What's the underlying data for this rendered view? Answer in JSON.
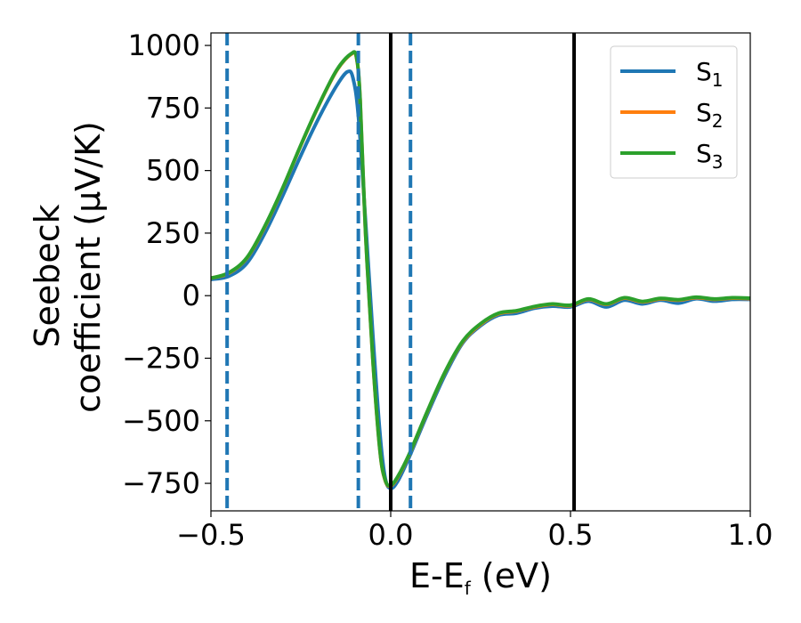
{
  "chart_data": {
    "type": "line",
    "xlabel": {
      "main": "E-E",
      "sub": "f",
      "tail": " (eV)"
    },
    "ylabel": {
      "line1": "Seebeck",
      "line2": "coefficient  (μV/K)"
    },
    "xlim": [
      -0.5,
      1.0
    ],
    "ylim": [
      -860,
      1050
    ],
    "xticks": [
      -0.5,
      0.0,
      0.5,
      1.0
    ],
    "xtick_labels": [
      "−0.5",
      "0.0",
      "0.5",
      "1.0"
    ],
    "yticks": [
      1000,
      750,
      500,
      250,
      0,
      -250,
      -500,
      -750
    ],
    "ytick_labels": [
      "1000",
      "750",
      "500",
      "250",
      "0",
      "−250",
      "−500",
      "−750"
    ],
    "grid": false,
    "legend_position": "top-right",
    "vlines_dashed": [
      -0.455,
      -0.09,
      0.055
    ],
    "vlines_solid": [
      0.0,
      0.51
    ],
    "vline_dashed_color": "#1f77b4",
    "vline_solid_color": "#000000",
    "series": [
      {
        "name": "S",
        "sub": "1",
        "color": "#1f77b4",
        "points": [
          [
            -0.5,
            65
          ],
          [
            -0.45,
            78
          ],
          [
            -0.4,
            130
          ],
          [
            -0.35,
            250
          ],
          [
            -0.3,
            400
          ],
          [
            -0.25,
            560
          ],
          [
            -0.2,
            710
          ],
          [
            -0.15,
            840
          ],
          [
            -0.12,
            895
          ],
          [
            -0.105,
            870
          ],
          [
            -0.09,
            720
          ],
          [
            -0.07,
            300
          ],
          [
            -0.05,
            -150
          ],
          [
            -0.03,
            -550
          ],
          [
            -0.015,
            -730
          ],
          [
            0.0,
            -770
          ],
          [
            0.02,
            -740
          ],
          [
            0.05,
            -650
          ],
          [
            0.1,
            -480
          ],
          [
            0.15,
            -320
          ],
          [
            0.2,
            -190
          ],
          [
            0.25,
            -120
          ],
          [
            0.3,
            -78
          ],
          [
            0.35,
            -70
          ],
          [
            0.4,
            -50
          ],
          [
            0.45,
            -42
          ],
          [
            0.5,
            -45
          ],
          [
            0.55,
            -22
          ],
          [
            0.6,
            -45
          ],
          [
            0.65,
            -18
          ],
          [
            0.7,
            -33
          ],
          [
            0.75,
            -18
          ],
          [
            0.8,
            -30
          ],
          [
            0.85,
            -12
          ],
          [
            0.9,
            -22
          ],
          [
            0.95,
            -15
          ],
          [
            1.0,
            -15
          ]
        ]
      },
      {
        "name": "S",
        "sub": "2",
        "color": "#ff7f0e",
        "points": [
          [
            -0.5,
            70
          ],
          [
            -0.45,
            90
          ],
          [
            -0.4,
            150
          ],
          [
            -0.35,
            275
          ],
          [
            -0.3,
            430
          ],
          [
            -0.25,
            600
          ],
          [
            -0.2,
            760
          ],
          [
            -0.15,
            900
          ],
          [
            -0.11,
            965
          ],
          [
            -0.095,
            950
          ],
          [
            -0.085,
            780
          ],
          [
            -0.07,
            250
          ],
          [
            -0.05,
            -250
          ],
          [
            -0.03,
            -620
          ],
          [
            -0.015,
            -740
          ],
          [
            0.0,
            -760
          ],
          [
            0.02,
            -725
          ],
          [
            0.05,
            -640
          ],
          [
            0.1,
            -470
          ],
          [
            0.15,
            -310
          ],
          [
            0.2,
            -185
          ],
          [
            0.25,
            -115
          ],
          [
            0.3,
            -72
          ],
          [
            0.35,
            -62
          ],
          [
            0.4,
            -45
          ],
          [
            0.45,
            -35
          ],
          [
            0.5,
            -40
          ],
          [
            0.55,
            -15
          ],
          [
            0.6,
            -35
          ],
          [
            0.65,
            -10
          ],
          [
            0.7,
            -25
          ],
          [
            0.75,
            -13
          ],
          [
            0.8,
            -18
          ],
          [
            0.85,
            -8
          ],
          [
            0.9,
            -15
          ],
          [
            0.95,
            -10
          ],
          [
            1.0,
            -12
          ]
        ]
      },
      {
        "name": "S",
        "sub": "3",
        "color": "#2ca02c",
        "points": [
          [
            -0.5,
            70
          ],
          [
            -0.45,
            92
          ],
          [
            -0.4,
            152
          ],
          [
            -0.35,
            278
          ],
          [
            -0.3,
            432
          ],
          [
            -0.25,
            602
          ],
          [
            -0.2,
            762
          ],
          [
            -0.15,
            902
          ],
          [
            -0.11,
            967
          ],
          [
            -0.095,
            952
          ],
          [
            -0.085,
            782
          ],
          [
            -0.07,
            252
          ],
          [
            -0.05,
            -248
          ],
          [
            -0.03,
            -618
          ],
          [
            -0.015,
            -738
          ],
          [
            0.0,
            -758
          ],
          [
            0.02,
            -722
          ],
          [
            0.05,
            -638
          ],
          [
            0.1,
            -468
          ],
          [
            0.15,
            -308
          ],
          [
            0.2,
            -182
          ],
          [
            0.25,
            -112
          ],
          [
            0.3,
            -70
          ],
          [
            0.35,
            -60
          ],
          [
            0.4,
            -43
          ],
          [
            0.45,
            -33
          ],
          [
            0.5,
            -38
          ],
          [
            0.55,
            -13
          ],
          [
            0.6,
            -33
          ],
          [
            0.65,
            -8
          ],
          [
            0.7,
            -23
          ],
          [
            0.75,
            -11
          ],
          [
            0.8,
            -16
          ],
          [
            0.85,
            -6
          ],
          [
            0.9,
            -13
          ],
          [
            0.95,
            -8
          ],
          [
            1.0,
            -10
          ]
        ]
      }
    ]
  }
}
